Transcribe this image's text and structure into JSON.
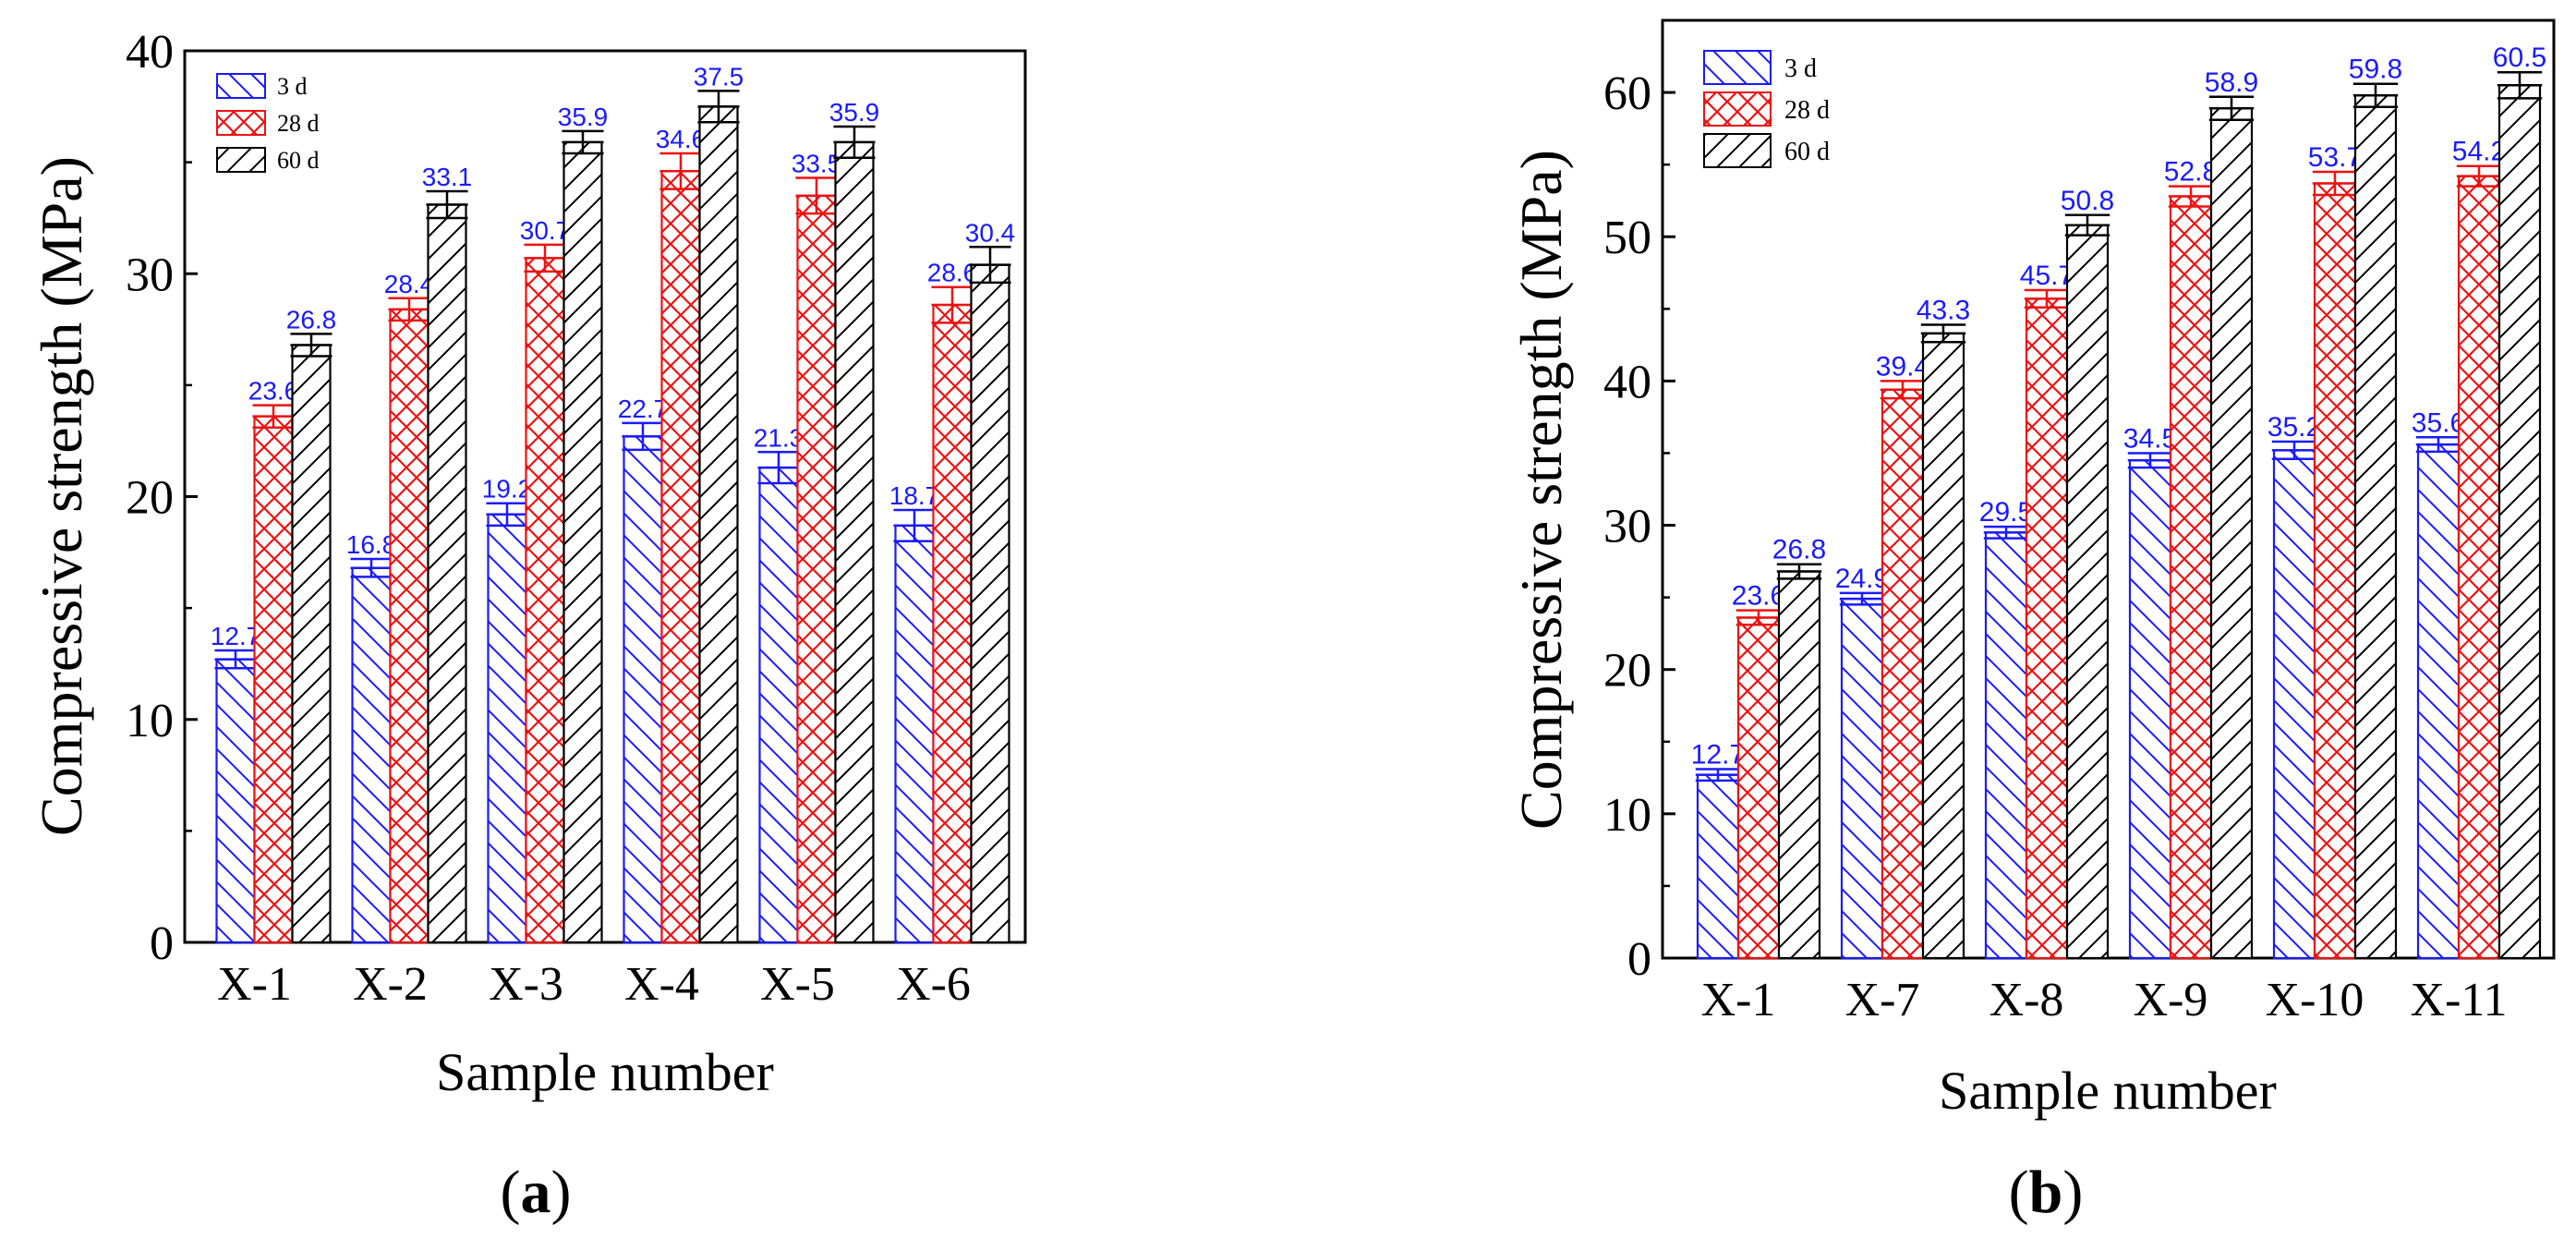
{
  "figure_labels": [
    "(a)",
    "(b)"
  ],
  "legend": [
    {
      "label": "3 d",
      "color": "#1a1aff",
      "pattern": "backslash"
    },
    {
      "label": "28 d",
      "color": "#ee1111",
      "pattern": "crosshatch"
    },
    {
      "label": "60 d",
      "color": "#000000",
      "pattern": "slash"
    }
  ],
  "chart_data": [
    {
      "type": "bar",
      "title": "",
      "panel_label": "(a)",
      "xlabel": "Sample number",
      "ylabel": "Compressive strength (MPa)",
      "ylim": [
        0,
        40
      ],
      "yticks": [
        0,
        10,
        20,
        30,
        40
      ],
      "categories": [
        "X-1",
        "X-2",
        "X-3",
        "X-4",
        "X-5",
        "X-6"
      ],
      "series": [
        {
          "name": "3 d",
          "values": [
            12.7,
            16.8,
            19.2,
            22.7,
            21.3,
            18.7
          ],
          "value_labels": [
            "12.7",
            "16.8",
            "19.2",
            "22.7",
            "21.3",
            "18.7"
          ],
          "errors": [
            0.4,
            0.4,
            0.5,
            0.6,
            0.7,
            0.7
          ]
        },
        {
          "name": "28 d",
          "values": [
            23.6,
            28.4,
            30.7,
            34.6,
            33.5,
            28.6
          ],
          "value_labels": [
            "23.6",
            "28.4",
            "30.7",
            "34.6",
            "33.5",
            "28.6"
          ],
          "errors": [
            0.5,
            0.5,
            0.6,
            0.8,
            0.8,
            0.8
          ]
        },
        {
          "name": "60 d",
          "values": [
            26.8,
            33.1,
            35.9,
            37.5,
            35.9,
            30.4
          ],
          "value_labels": [
            "26.8",
            "33.1",
            "35.9",
            "37.5",
            "35.9",
            "30.4"
          ],
          "errors": [
            0.5,
            0.6,
            0.5,
            0.7,
            0.7,
            0.8
          ]
        }
      ]
    },
    {
      "type": "bar",
      "title": "",
      "panel_label": "(b)",
      "xlabel": "Sample number",
      "ylabel": "Compressive strength (MPa)",
      "ylim": [
        0,
        65
      ],
      "yticks": [
        0,
        10,
        20,
        30,
        40,
        50,
        60
      ],
      "categories": [
        "X-1",
        "X-7",
        "X-8",
        "X-9",
        "X-10",
        "X-11"
      ],
      "series": [
        {
          "name": "3 d",
          "values": [
            12.7,
            24.9,
            29.5,
            34.5,
            35.2,
            35.6
          ],
          "value_labels": [
            "12.7",
            "24.9",
            "29.5",
            "34.5",
            "35.2",
            "35.6"
          ],
          "errors": [
            0.4,
            0.4,
            0.4,
            0.5,
            0.6,
            0.5
          ]
        },
        {
          "name": "28 d",
          "values": [
            23.6,
            39.4,
            45.7,
            52.8,
            53.7,
            54.2
          ],
          "value_labels": [
            "23.6",
            "39.4",
            "45.7",
            "52.8",
            "53.7",
            "54.2"
          ],
          "errors": [
            0.5,
            0.6,
            0.6,
            0.7,
            0.8,
            0.7
          ]
        },
        {
          "name": "60 d",
          "values": [
            26.8,
            43.3,
            50.8,
            58.9,
            59.8,
            60.5
          ],
          "value_labels": [
            "26.8",
            "43.3",
            "50.8",
            "58.9",
            "59.8",
            "60.5"
          ],
          "errors": [
            0.5,
            0.6,
            0.7,
            0.8,
            0.8,
            0.9
          ]
        }
      ]
    }
  ]
}
